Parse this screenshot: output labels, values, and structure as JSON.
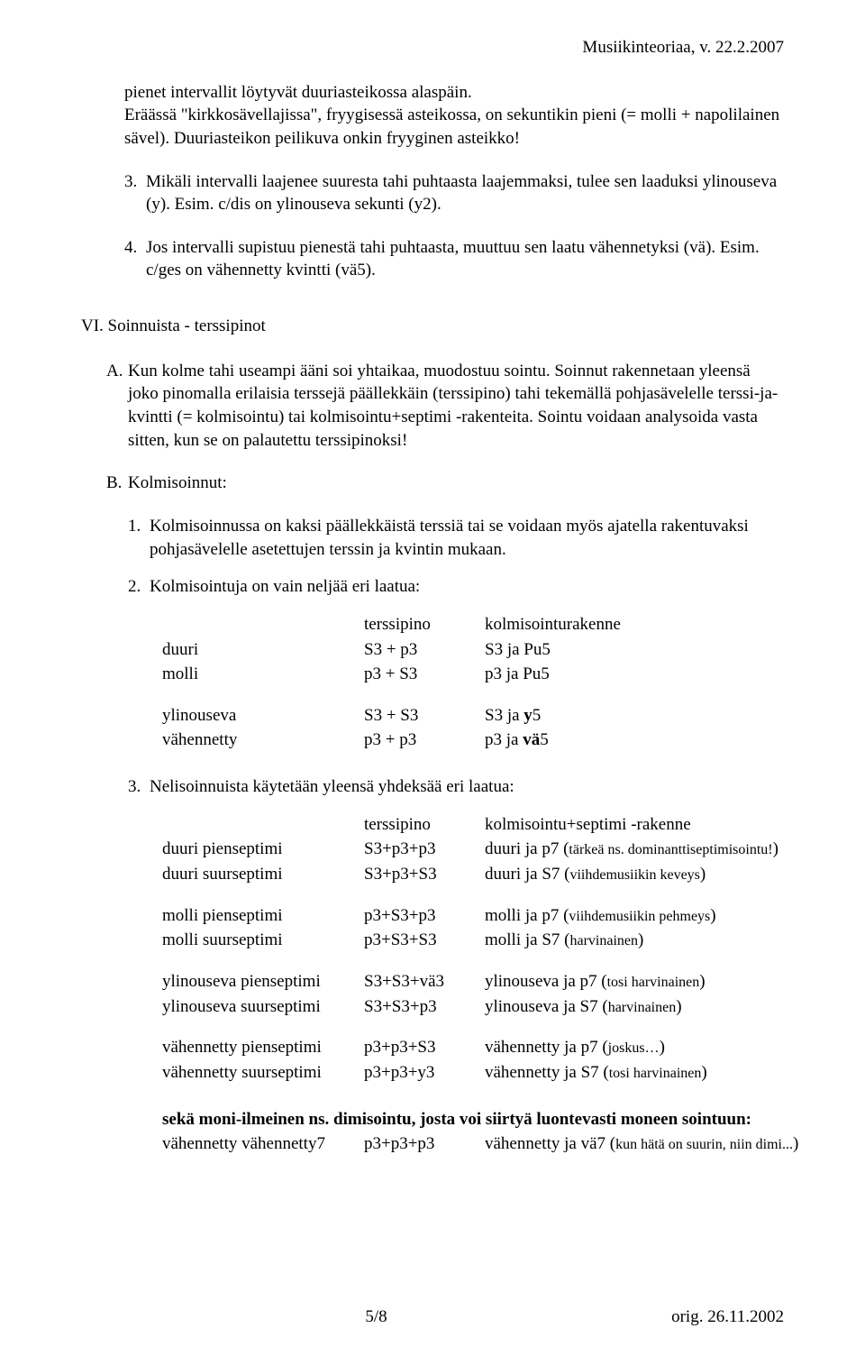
{
  "header": {
    "right": "Musiikinteoriaa, v. 22.2.2007"
  },
  "intro": {
    "para": "pienet intervallit löytyvät duuriasteikossa alaspäin.\nEräässä \"kirkkosävellajissa\", fryygisessä asteikossa, on sekuntikin pieni (= molli + napolilainen sävel). Duuriasteikon peilikuva onkin fryyginen asteikko!",
    "item3_num": "3.",
    "item3_text": "Mikäli intervalli laajenee suuresta tahi puhtaasta laajemmaksi, tulee sen laaduksi ylinouseva (y). Esim. c/dis on ylinouseva sekunti (y2).",
    "item4_num": "4.",
    "item4_text": "Jos intervalli supistuu pienestä tahi puhtaasta, muuttuu sen laatu vähennetyksi (vä). Esim. c/ges on vähennetty kvintti (vä5)."
  },
  "sectionVI": {
    "heading": "VI. Soinnuista - terssipinot",
    "A_lbl": "A.",
    "A_text": "Kun kolme tahi useampi ääni soi yhtaikaa, muodostuu sointu. Soinnut rakennetaan yleensä joko pinomalla erilaisia terssejä päällekkäin (terssipino) tahi tekemällä pohjasävelelle terssi-ja-kvintti (= kolmisointu) tai kolmisointu+septimi -rakenteita. Sointu voidaan analysoida vasta sitten, kun se on palautettu terssipinoksi!",
    "B_lbl": "B.",
    "B_text": "Kolmisoinnut:",
    "n1_num": "1.",
    "n1_text": "Kolmisoinnussa on kaksi päällekkäistä terssiä tai se voidaan myös ajatella rakentuvaksi pohjasävelelle asetettujen terssin ja kvintin mukaan.",
    "n2_num": "2.",
    "n2_text": "Kolmisointuja on vain neljää eri laatua:",
    "n3_num": "3.",
    "n3_text": "Nelisoinnuista käytetään yleensä yhdeksää eri laatua:"
  },
  "table1": {
    "h_c1": "",
    "h_c2": "terssipino",
    "h_c3": "kolmisointurakenne",
    "rows": [
      [
        "duuri",
        "S3 + p3",
        "S3 ja Pu5"
      ],
      [
        "molli",
        "p3 + S3",
        "p3 ja Pu5"
      ]
    ],
    "rows2": [
      {
        "c1": "ylinouseva",
        "c2": "S3 + S3",
        "c3_pre": "S3 ja ",
        "c3_bold": "y",
        "c3_post": "5"
      },
      {
        "c1": "vähennetty",
        "c2": "p3 + p3",
        "c3_pre": "p3 ja ",
        "c3_bold": "vä",
        "c3_post": "5"
      }
    ]
  },
  "table2": {
    "h_c1": "",
    "h_c2": "terssipino",
    "h_c3": "kolmisointu+septimi -rakenne",
    "groups": [
      [
        {
          "c1": "duuri pienseptimi",
          "c2": "S3+p3+p3",
          "c3": "duuri ja p7 (",
          "note": "tärkeä ns. dominanttiseptimisointu!",
          "c3_end": ")"
        },
        {
          "c1": "duuri suurseptimi",
          "c2": "S3+p3+S3",
          "c3": "duuri ja S7 (",
          "note": "viihdemusiikin keveys",
          "c3_end": ")"
        }
      ],
      [
        {
          "c1": "molli pienseptimi",
          "c2": "p3+S3+p3",
          "c3": "molli ja p7 (",
          "note": "viihdemusiikin pehmeys",
          "c3_end": ")"
        },
        {
          "c1": "molli suurseptimi",
          "c2": "p3+S3+S3",
          "c3": "molli ja S7 (",
          "note": "harvinainen",
          "c3_end": ")"
        }
      ],
      [
        {
          "c1": "ylinouseva pienseptimi",
          "c2": "S3+S3+vä3",
          "c3": "ylinouseva ja p7 (",
          "note": "tosi harvinainen",
          "c3_end": ")"
        },
        {
          "c1": "ylinouseva suurseptimi",
          "c2": "S3+S3+p3",
          "c3": "ylinouseva ja S7 (",
          "note": "harvinainen",
          "c3_end": ")"
        }
      ],
      [
        {
          "c1": "vähennetty pienseptimi",
          "c2": "p3+p3+S3",
          "c3": "vähennetty ja p7 (",
          "note": "joskus…",
          "c3_end": ")"
        },
        {
          "c1": "vähennetty suurseptimi",
          "c2": "p3+p3+y3",
          "c3": "vähennetty ja S7 (",
          "note": "tosi harvinainen",
          "c3_end": ")"
        }
      ]
    ]
  },
  "dimi": {
    "line1": "sekä moni-ilmeinen ns. dimisointu, josta voi siirtyä luontevasti moneen sointuun:",
    "row": {
      "c1": "vähennetty vähennetty7",
      "c2": "p3+p3+p3",
      "c3": "vähennetty ja vä7 (",
      "note": "kun hätä on suurin, niin dimi...",
      "c3_end": ")"
    }
  },
  "footer": {
    "center": "5/8",
    "right": "orig. 26.11.2002"
  }
}
